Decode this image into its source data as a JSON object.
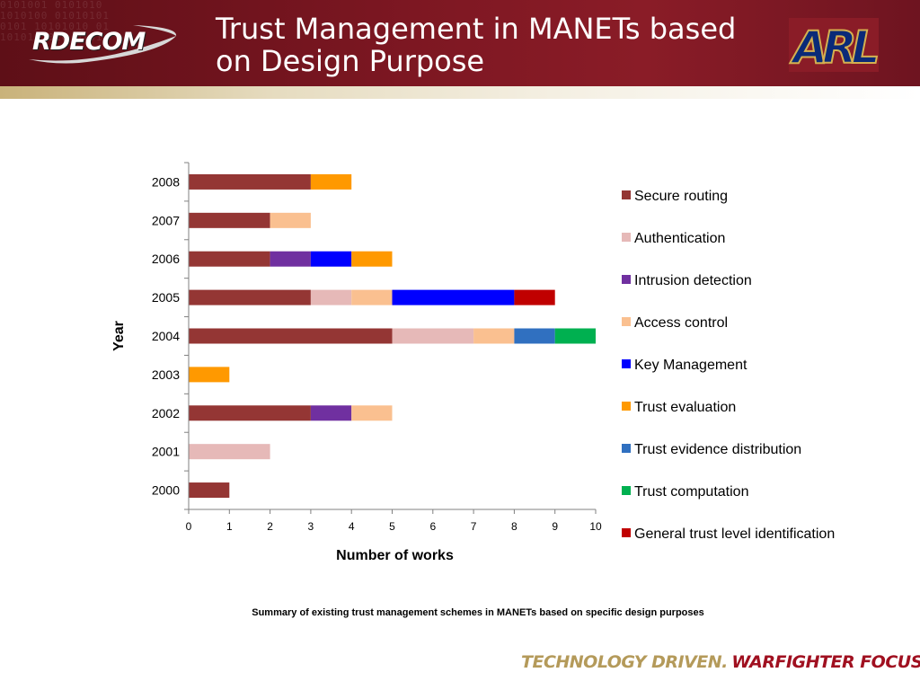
{
  "header": {
    "title": "Trust Management in MANETs based on Design Purpose",
    "left_logo_text": "RDECOM",
    "right_logo_text": "ARL",
    "digits_texture": "0101001 0101010\n1010100 01010101\n0101 10101010 01\n1010101010 0101"
  },
  "chart_data": {
    "type": "bar",
    "orientation": "horizontal",
    "stacked": true,
    "categories": [
      "2000",
      "2001",
      "2002",
      "2003",
      "2004",
      "2005",
      "2006",
      "2007",
      "2008"
    ],
    "series": [
      {
        "name": "Secure routing",
        "color": "#943634",
        "values": [
          1,
          0,
          3,
          0,
          5,
          3,
          2,
          2,
          3
        ]
      },
      {
        "name": "Authentication",
        "color": "#e6b9b8",
        "values": [
          0,
          2,
          0,
          0,
          2,
          1,
          0,
          0,
          0
        ]
      },
      {
        "name": "Intrusion detection",
        "color": "#7030a0",
        "values": [
          0,
          0,
          1,
          0,
          0,
          0,
          1,
          0,
          0
        ]
      },
      {
        "name": "Access control",
        "color": "#fac090",
        "values": [
          0,
          0,
          1,
          0,
          1,
          1,
          0,
          1,
          0
        ]
      },
      {
        "name": "Key Management",
        "color": "#0000ff",
        "values": [
          0,
          0,
          0,
          0,
          0,
          3,
          1,
          0,
          0
        ]
      },
      {
        "name": "Trust evaluation",
        "color": "#ff9900",
        "values": [
          0,
          0,
          0,
          1,
          0,
          0,
          1,
          0,
          1
        ]
      },
      {
        "name": "Trust evidence distribution",
        "color": "#3070c0",
        "values": [
          0,
          0,
          0,
          0,
          1,
          0,
          0,
          0,
          0
        ]
      },
      {
        "name": "Trust computation",
        "color": "#00b050",
        "values": [
          0,
          0,
          0,
          0,
          1,
          0,
          0,
          0,
          0
        ]
      },
      {
        "name": "General trust level identification",
        "color": "#c00000",
        "values": [
          0,
          0,
          0,
          0,
          0,
          1,
          0,
          0,
          0
        ]
      }
    ],
    "xlabel": "Number of works",
    "ylabel": "Year",
    "xlim": [
      0,
      10
    ],
    "xticks": [
      "0",
      "1",
      "2",
      "3",
      "4",
      "5",
      "6",
      "7",
      "8",
      "9",
      "10"
    ],
    "grid": false,
    "legend_position": "right"
  },
  "caption": "Summary of existing trust management schemes in MANETs based on specific design purposes",
  "footer": {
    "tagline_part1": "TECHNOLOGY DRIVEN.",
    "tagline_part2": "WARFIGHTER FOCUSED."
  }
}
